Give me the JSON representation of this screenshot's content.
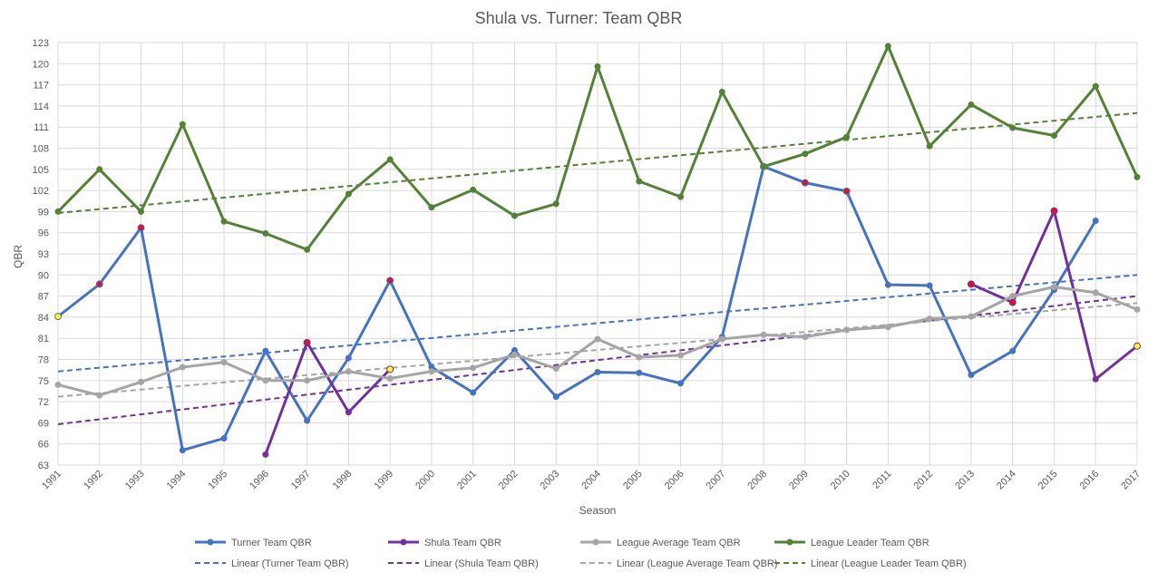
{
  "chart_data": {
    "type": "line",
    "title": "Shula vs. Turner: Team QBR",
    "xlabel": "Season",
    "ylabel": "QBR",
    "ylim": [
      63,
      123
    ],
    "y_ticks": [
      63,
      66,
      69,
      72,
      75,
      78,
      81,
      84,
      87,
      90,
      93,
      96,
      99,
      102,
      105,
      108,
      111,
      114,
      117,
      120,
      123
    ],
    "x_ticks": [
      "1991",
      "1992",
      "1993",
      "1994",
      "1995",
      "1996",
      "1997",
      "1998",
      "1999",
      "2000",
      "2001",
      "2002",
      "2003",
      "2004",
      "2005",
      "2006",
      "2007",
      "2008",
      "2009",
      "2010",
      "2011",
      "2012",
      "2013",
      "2014",
      "2015",
      "2016",
      "2017"
    ],
    "grid": true,
    "legend_position": "bottom",
    "series": [
      {
        "name": "Turner Team QBR",
        "color": "#4472C4",
        "values": [
          [
            1991,
            84.1
          ],
          [
            1992,
            88.7
          ],
          [
            1993,
            96.7
          ],
          [
            1994,
            65.1
          ],
          [
            1995,
            66.8
          ],
          [
            1996,
            79.2
          ],
          [
            1997,
            69.3
          ],
          [
            1998,
            78.2
          ],
          [
            1999,
            89.2
          ],
          [
            2000,
            76.9
          ],
          [
            2001,
            73.3
          ],
          [
            2002,
            79.3
          ],
          [
            2003,
            72.7
          ],
          [
            2004,
            76.2
          ],
          [
            2005,
            76.1
          ],
          [
            2006,
            74.6
          ],
          [
            2007,
            81.2
          ],
          [
            2008,
            105.4
          ],
          [
            2009,
            103.1
          ],
          [
            2010,
            101.9
          ],
          [
            2011,
            88.6
          ],
          [
            2012,
            88.5
          ],
          [
            2013,
            75.8
          ],
          [
            2014,
            79.2
          ],
          [
            2015,
            87.9
          ],
          [
            2016,
            97.7
          ]
        ],
        "highlight": [
          {
            "x": 1991,
            "color": "#FFFF00"
          },
          {
            "x": 1992,
            "color": "#E0102F"
          },
          {
            "x": 1993,
            "color": "#E0102F"
          },
          {
            "x": 1999,
            "color": "#E0102F"
          },
          {
            "x": 2008,
            "color": "#E0102F"
          },
          {
            "x": 2009,
            "color": "#E0102F"
          },
          {
            "x": 2010,
            "color": "#E0102F"
          }
        ]
      },
      {
        "name": "Shula Team QBR",
        "color": "#7030A0",
        "segments": [
          [
            [
              1996,
              64.5
            ],
            [
              1997,
              80.4
            ],
            [
              1998,
              70.5
            ],
            [
              1999,
              76.6
            ]
          ],
          [
            [
              2013,
              88.7
            ],
            [
              2014,
              86.1
            ],
            [
              2015,
              99.1
            ],
            [
              2016,
              75.2
            ],
            [
              2017,
              79.9
            ]
          ]
        ],
        "highlight": [
          {
            "x": 1997,
            "color": "#E0102F"
          },
          {
            "x": 1999,
            "color": "#FFFF00"
          },
          {
            "x": 2013,
            "color": "#E0102F"
          },
          {
            "x": 2014,
            "color": "#E0102F"
          },
          {
            "x": 2015,
            "color": "#E0102F"
          },
          {
            "x": 2017,
            "color": "#FFFF00"
          }
        ]
      },
      {
        "name": "League Average Team QBR",
        "color": "#A5A5A5",
        "values": [
          [
            1991,
            74.4
          ],
          [
            1992,
            72.9
          ],
          [
            1993,
            74.8
          ],
          [
            1994,
            76.9
          ],
          [
            1995,
            77.6
          ],
          [
            1996,
            75.0
          ],
          [
            1997,
            75.0
          ],
          [
            1998,
            76.3
          ],
          [
            1999,
            75.3
          ],
          [
            2000,
            76.3
          ],
          [
            2001,
            76.8
          ],
          [
            2002,
            78.7
          ],
          [
            2003,
            76.7
          ],
          [
            2004,
            80.9
          ],
          [
            2005,
            78.3
          ],
          [
            2006,
            78.6
          ],
          [
            2007,
            80.9
          ],
          [
            2008,
            81.5
          ],
          [
            2009,
            81.2
          ],
          [
            2010,
            82.2
          ],
          [
            2011,
            82.6
          ],
          [
            2012,
            83.8
          ],
          [
            2013,
            84.1
          ],
          [
            2014,
            87.0
          ],
          [
            2015,
            88.3
          ],
          [
            2016,
            87.5
          ],
          [
            2017,
            85.1
          ]
        ]
      },
      {
        "name": "League Leader Team QBR",
        "color": "#548235",
        "values": [
          [
            1991,
            99.0
          ],
          [
            1992,
            105.0
          ],
          [
            1993,
            99.0
          ],
          [
            1994,
            111.4
          ],
          [
            1995,
            97.6
          ],
          [
            1996,
            95.9
          ],
          [
            1997,
            93.6
          ],
          [
            1998,
            101.5
          ],
          [
            1999,
            106.4
          ],
          [
            2000,
            99.6
          ],
          [
            2001,
            102.1
          ],
          [
            2002,
            98.4
          ],
          [
            2003,
            100.1
          ],
          [
            2004,
            119.6
          ],
          [
            2005,
            103.3
          ],
          [
            2006,
            101.1
          ],
          [
            2007,
            116.0
          ],
          [
            2008,
            105.4
          ],
          [
            2009,
            107.2
          ],
          [
            2010,
            109.6
          ],
          [
            2011,
            122.5
          ],
          [
            2012,
            108.3
          ],
          [
            2013,
            114.2
          ],
          [
            2014,
            110.9
          ],
          [
            2015,
            109.8
          ],
          [
            2016,
            116.8
          ],
          [
            2017,
            103.9
          ]
        ]
      }
    ],
    "trendlines": [
      {
        "name": "Linear (Turner Team QBR)",
        "color": "#4472C4",
        "from": [
          1991,
          76.3
        ],
        "to": [
          2017,
          90.0
        ]
      },
      {
        "name": "Linear (Shula Team QBR)",
        "color": "#7030A0",
        "from": [
          1991,
          68.8
        ],
        "to": [
          2017,
          87.0
        ]
      },
      {
        "name": "Linear (League Average Team QBR)",
        "color": "#A5A5A5",
        "from": [
          1991,
          72.7
        ],
        "to": [
          2017,
          86.0
        ]
      },
      {
        "name": "Linear (League Leader Team QBR)",
        "color": "#548235",
        "from": [
          1991,
          98.8
        ],
        "to": [
          2017,
          113.0
        ]
      }
    ],
    "legend": [
      [
        "Turner Team QBR",
        "Shula Team QBR",
        "League Average Team QBR",
        "League Leader Team QBR"
      ],
      [
        "Linear (Turner Team QBR)",
        "Linear (Shula Team QBR)",
        "Linear (League Average Team QBR)",
        "Linear (League Leader Team QBR)"
      ]
    ]
  }
}
